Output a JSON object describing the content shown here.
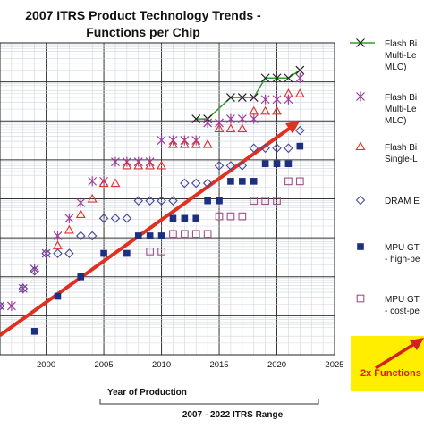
{
  "chart_data": {
    "type": "scatter",
    "title_line1": "2007 ITRS Product Technology Trends -",
    "title_line2": "Functions per Chip",
    "xlabel": "Year of Production",
    "range_label": "2007 - 2022 ITRS Range",
    "log_y": true,
    "grid": true,
    "xlim": [
      1996,
      2025
    ],
    "ylim_log10": [
      0,
      8
    ],
    "x_ticks": [
      2000,
      2005,
      2010,
      2015,
      2020,
      2025
    ],
    "legend_position": "right",
    "series": [
      {
        "name_lines": [
          "Flash Bi",
          "Multi-Le",
          "MLC)"
        ],
        "marker": "x-line",
        "color": "#2e9e2e",
        "x": [
          2013,
          2014,
          2016,
          2017,
          2018,
          2019,
          2020,
          2021,
          2022
        ],
        "y_log10": [
          6.05,
          6.05,
          6.6,
          6.6,
          6.6,
          7.1,
          7.1,
          7.1,
          7.3
        ]
      },
      {
        "name_lines": [
          "Flash Bi",
          "Multi-Le",
          "MLC)"
        ],
        "marker": "asterisk",
        "color": "#9b3f9b",
        "x": [
          1996,
          1997,
          1998,
          1999,
          2000,
          2001,
          2002,
          2003,
          2004,
          2005,
          2006,
          2007,
          2008,
          2009,
          2010,
          2011,
          2012,
          2013,
          2014,
          2015,
          2016,
          2017,
          2018,
          2019,
          2020,
          2021,
          2022
        ],
        "y_log10": [
          1.25,
          1.25,
          1.7,
          2.2,
          2.6,
          3.05,
          3.5,
          3.9,
          4.45,
          4.45,
          4.95,
          4.95,
          4.95,
          4.95,
          5.5,
          5.5,
          5.5,
          5.5,
          5.95,
          5.95,
          6.05,
          6.05,
          6.05,
          6.55,
          6.55,
          6.55,
          7.1
        ]
      },
      {
        "name_lines": [
          "Flash Bi",
          "Single-L"
        ],
        "marker": "triangle",
        "color": "#e03030",
        "x": [
          2001,
          2002,
          2003,
          2004,
          2005,
          2006,
          2007,
          2008,
          2009,
          2010,
          2011,
          2012,
          2013,
          2014,
          2015,
          2016,
          2017,
          2018,
          2019,
          2020,
          2021,
          2022
        ],
        "y_log10": [
          2.8,
          3.2,
          3.6,
          4.0,
          4.4,
          4.4,
          4.85,
          4.85,
          4.85,
          4.85,
          5.4,
          5.4,
          5.4,
          5.4,
          5.8,
          5.8,
          5.8,
          6.25,
          6.25,
          6.25,
          6.7,
          6.7
        ]
      },
      {
        "name_lines": [
          "DRAM E"
        ],
        "marker": "diamond",
        "color": "#4a4a9a",
        "x": [
          1996,
          1998,
          1999,
          2000,
          2001,
          2002,
          2003,
          2004,
          2005,
          2006,
          2007,
          2008,
          2009,
          2010,
          2011,
          2012,
          2013,
          2014,
          2015,
          2016,
          2017,
          2018,
          2019,
          2020,
          2021,
          2022
        ],
        "y_log10": [
          1.25,
          1.7,
          2.15,
          2.6,
          2.6,
          2.6,
          3.05,
          3.05,
          3.5,
          3.5,
          3.5,
          3.95,
          3.95,
          3.95,
          3.95,
          4.4,
          4.4,
          4.4,
          4.85,
          4.85,
          4.85,
          5.3,
          5.3,
          5.3,
          5.3,
          5.75
        ]
      },
      {
        "name_lines": [
          "MPU GT",
          "- high-pe"
        ],
        "marker": "square",
        "color": "#1c2f80",
        "x": [
          1999,
          2001,
          2003,
          2005,
          2007,
          2008,
          2009,
          2010,
          2011,
          2012,
          2013,
          2014,
          2015,
          2016,
          2017,
          2018,
          2019,
          2020,
          2021,
          2022
        ],
        "y_log10": [
          0.6,
          1.5,
          2.0,
          2.6,
          2.6,
          3.05,
          3.05,
          3.05,
          3.5,
          3.5,
          3.5,
          3.95,
          3.95,
          4.45,
          4.45,
          4.45,
          4.9,
          4.9,
          4.9,
          5.35
        ]
      },
      {
        "name_lines": [
          "MPU GT",
          "- cost-pe"
        ],
        "marker": "open-square",
        "color": "#a0508a",
        "x": [
          2009,
          2010,
          2011,
          2012,
          2013,
          2014,
          2015,
          2016,
          2017,
          2018,
          2019,
          2020,
          2021,
          2022
        ],
        "y_log10": [
          2.65,
          2.65,
          3.1,
          3.1,
          3.1,
          3.1,
          3.55,
          3.55,
          3.55,
          3.95,
          3.95,
          3.95,
          4.45,
          4.45
        ]
      }
    ],
    "trend_line": {
      "color": "#e03020",
      "x": [
        1996,
        2022
      ],
      "y_log10": [
        0.5,
        6.0
      ]
    },
    "callout": {
      "text": "2x Functions",
      "background": "#ffee00",
      "text_color": "#d42020"
    }
  }
}
